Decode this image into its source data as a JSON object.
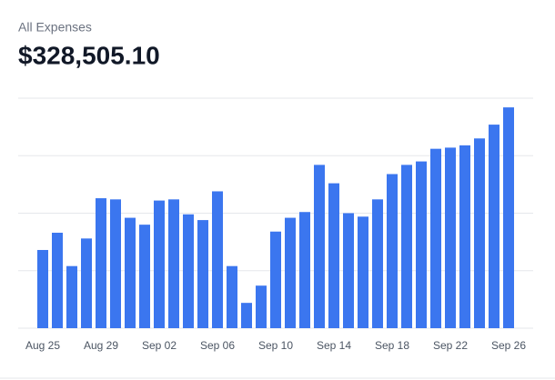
{
  "chart_data": {
    "type": "bar",
    "title": "All Expenses",
    "total": "$328,505.10",
    "categories": [
      "Aug 25",
      null,
      null,
      null,
      "Aug 29",
      null,
      null,
      null,
      "Sep 02",
      null,
      null,
      null,
      "Sep 06",
      null,
      null,
      null,
      "Sep 10",
      null,
      null,
      null,
      "Sep 14",
      null,
      null,
      null,
      "Sep 18",
      null,
      null,
      null,
      "Sep 22",
      null,
      null,
      null,
      "Sep 26"
    ],
    "values": [
      34,
      41.5,
      27,
      39,
      56.5,
      56,
      48,
      45,
      55.5,
      56,
      49.5,
      47,
      59.5,
      27,
      11,
      18.5,
      42,
      48,
      50.5,
      71,
      63,
      50,
      48.5,
      56,
      67,
      71,
      72.5,
      78,
      78.5,
      79.5,
      82.5,
      88.5,
      96
    ],
    "color": "#3b76ef",
    "ylim": [
      0,
      100
    ],
    "yticks": [
      0,
      25,
      50,
      75,
      100
    ],
    "grid": true
  }
}
